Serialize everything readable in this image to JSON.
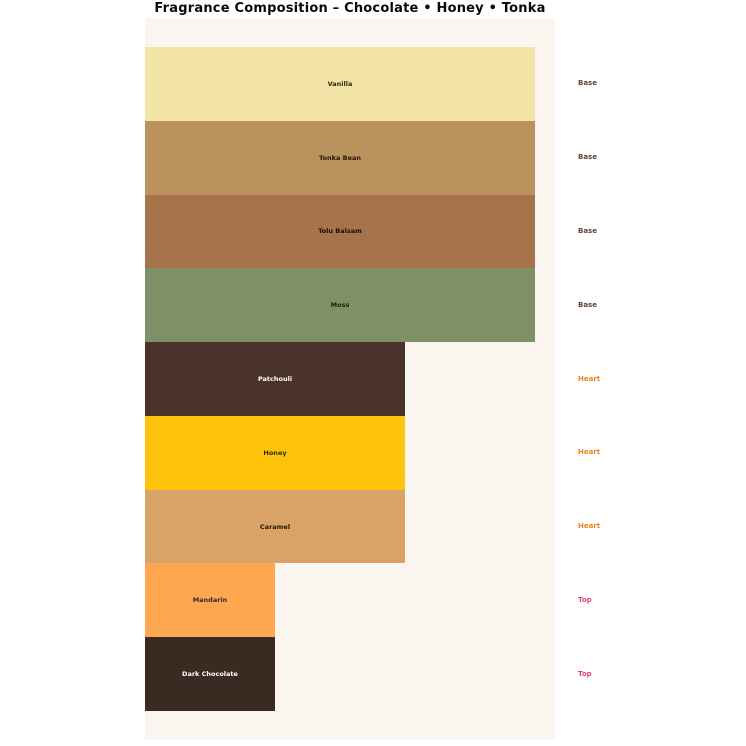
{
  "title": "Fragrance Composition – Chocolate • Honey • Tonka",
  "colors": {
    "page_bg": "#ffffff",
    "plot_bg": "#faf5ee",
    "title_text": "#0a0a0a"
  },
  "tier_colors": {
    "Base": "#5d4334",
    "Heart": "#e8851c",
    "Top": "#dc427c"
  },
  "chart_data": {
    "type": "bar",
    "orientation": "horizontal",
    "title": "Fragrance Composition – Chocolate • Honey • Tonka",
    "xlabel": "",
    "ylabel": "",
    "axes_visible": false,
    "grid": false,
    "legend": "none",
    "xlim_relative": [
      0,
      3.15
    ],
    "categories": [
      "Vanilla",
      "Tonka Bean",
      "Tolu Balsam",
      "Moss",
      "Patchouli",
      "Honey",
      "Caramel",
      "Mandarin",
      "Dark Chocolate"
    ],
    "relative_widths": [
      3,
      3,
      3,
      3,
      2,
      2,
      2,
      1,
      1
    ],
    "tiers": [
      "Base",
      "Base",
      "Base",
      "Base",
      "Heart",
      "Heart",
      "Heart",
      "Top",
      "Top"
    ],
    "bar_colors": [
      "#f2e4a6",
      "#b9925e",
      "#a7734a",
      "#7d9066",
      "#4b332c",
      "#fdc40b",
      "#d9a368",
      "#fda851",
      "#3b2a22"
    ],
    "label_colors": [
      "#352708",
      "#241503",
      "#1d0f05",
      "#16200d",
      "#ffffff",
      "#372800",
      "#241503",
      "#2b2b2b",
      "#ffffff"
    ]
  }
}
